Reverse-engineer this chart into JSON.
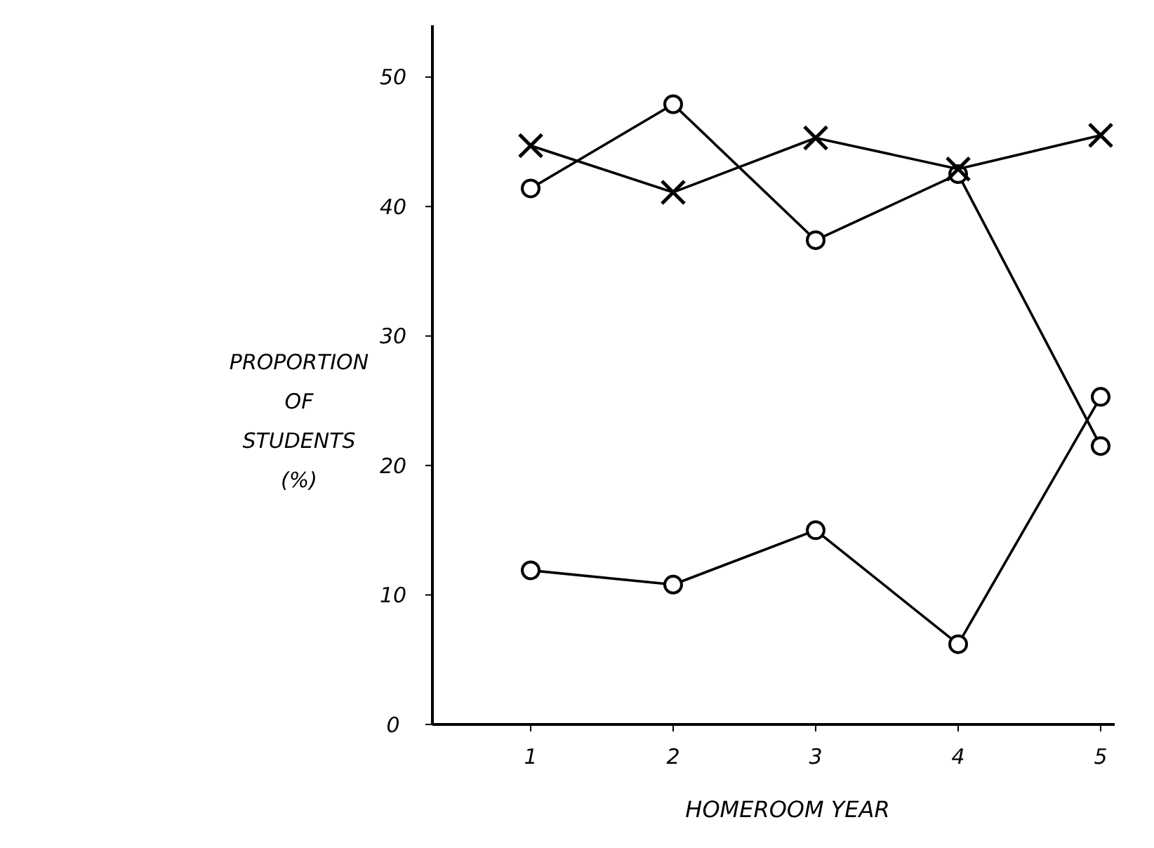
{
  "chart_data": {
    "type": "line",
    "xlabel": "HOMEROOM YEAR",
    "ylabel": "PROPORTION OF STUDENTS (%)",
    "categories": [
      "1",
      "2",
      "3",
      "4",
      "5"
    ],
    "ylim": [
      0,
      54
    ],
    "yticks": [
      0,
      10,
      20,
      30,
      40,
      50
    ],
    "grid": false,
    "series": [
      {
        "color": "#000000",
        "marker": "cross",
        "values": [
          44.7,
          41.1,
          45.3,
          42.9,
          45.5
        ]
      },
      {
        "color": "#000000",
        "marker": "circle",
        "values": [
          41.4,
          47.9,
          37.4,
          42.5,
          21.5
        ]
      },
      {
        "color": "#000000",
        "marker": "circle",
        "values": [
          11.9,
          10.8,
          15.0,
          6.2,
          25.3
        ]
      }
    ]
  }
}
